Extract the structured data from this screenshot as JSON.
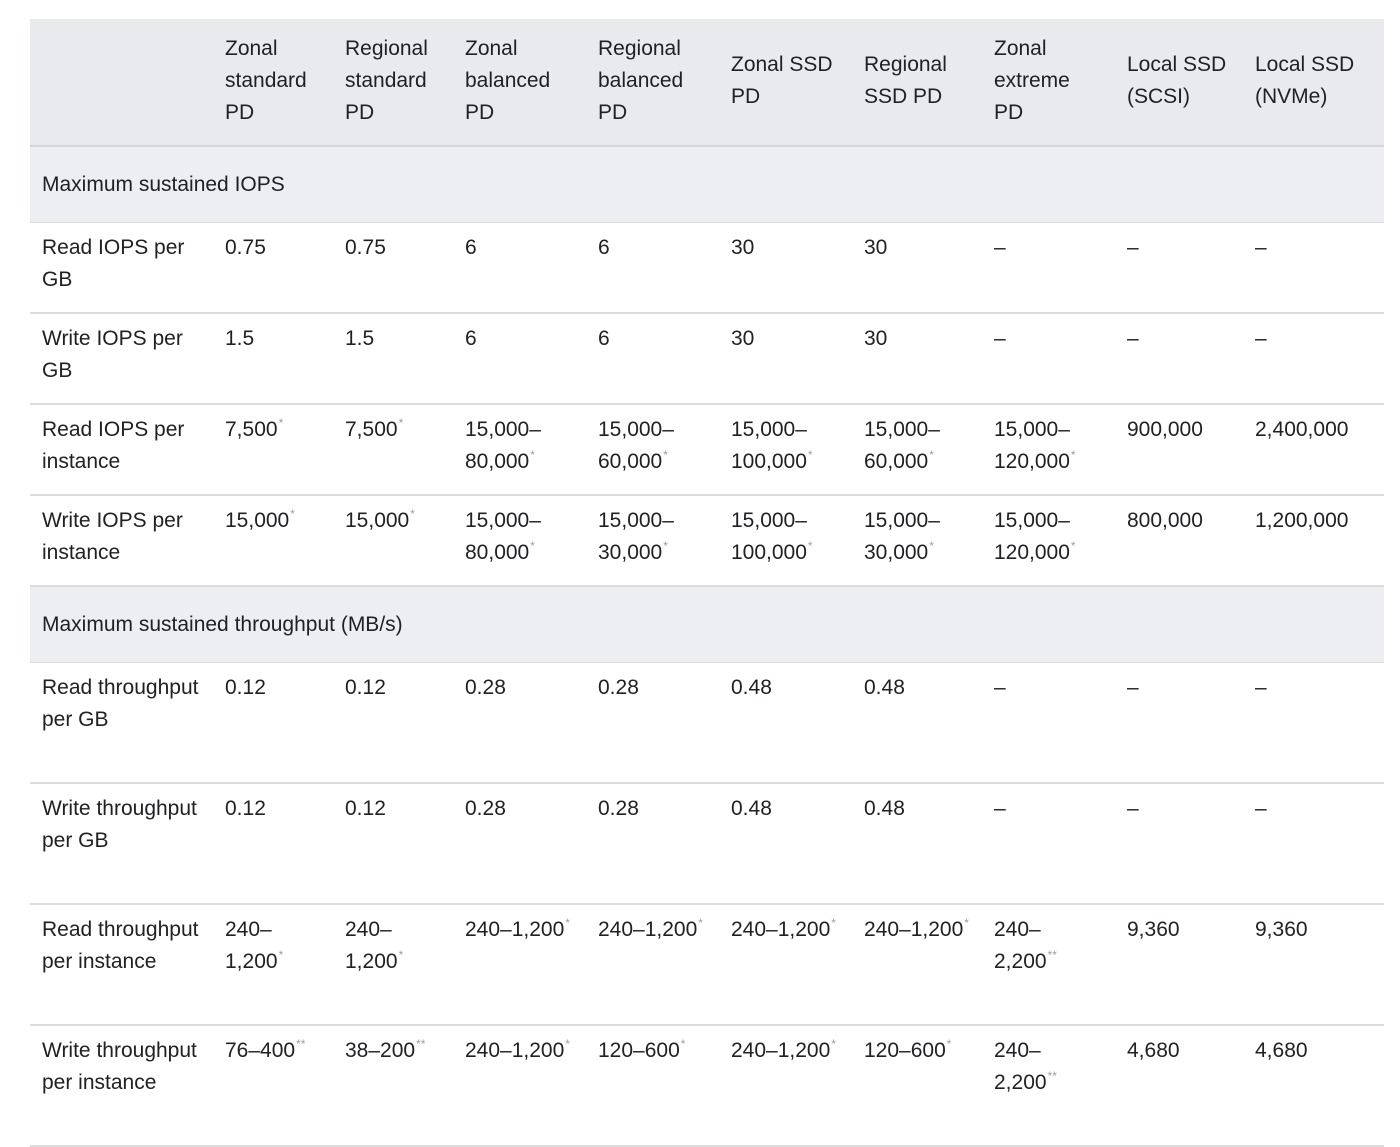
{
  "columns": [
    "",
    "Zonal standard PD",
    "Regional standard PD",
    "Zonal balanced PD",
    "Regional balanced PD",
    "Zonal SSD PD",
    "Regional SSD PD",
    "Zonal extreme PD",
    "Local SSD (SCSI)",
    "Local SSD (NVMe)"
  ],
  "sections": [
    {
      "title": "Maximum sustained IOPS",
      "rows": [
        {
          "label": "Read IOPS per GB",
          "cells": [
            {
              "v": "0.75",
              "m": ""
            },
            {
              "v": "0.75",
              "m": ""
            },
            {
              "v": "6",
              "m": ""
            },
            {
              "v": "6",
              "m": ""
            },
            {
              "v": "30",
              "m": ""
            },
            {
              "v": "30",
              "m": ""
            },
            {
              "v": "–",
              "m": ""
            },
            {
              "v": "–",
              "m": ""
            },
            {
              "v": "–",
              "m": ""
            }
          ]
        },
        {
          "label": "Write IOPS per GB",
          "cells": [
            {
              "v": "1.5",
              "m": ""
            },
            {
              "v": "1.5",
              "m": ""
            },
            {
              "v": "6",
              "m": ""
            },
            {
              "v": "6",
              "m": ""
            },
            {
              "v": "30",
              "m": ""
            },
            {
              "v": "30",
              "m": ""
            },
            {
              "v": "–",
              "m": ""
            },
            {
              "v": "–",
              "m": ""
            },
            {
              "v": "–",
              "m": ""
            }
          ]
        },
        {
          "label": "Read IOPS per instance",
          "cells": [
            {
              "v": "7,500",
              "m": "*"
            },
            {
              "v": "7,500",
              "m": "*"
            },
            {
              "v": "15,000–80,000",
              "m": "*"
            },
            {
              "v": "15,000–60,000",
              "m": "*"
            },
            {
              "v": "15,000–100,000",
              "m": "*"
            },
            {
              "v": "15,000–60,000",
              "m": "*"
            },
            {
              "v": "15,000–120,000",
              "m": "*"
            },
            {
              "v": "900,000",
              "m": ""
            },
            {
              "v": "2,400,000",
              "m": ""
            }
          ]
        },
        {
          "label": "Write IOPS per instance",
          "cells": [
            {
              "v": "15,000",
              "m": "*"
            },
            {
              "v": "15,000",
              "m": "*"
            },
            {
              "v": "15,000–80,000",
              "m": "*"
            },
            {
              "v": "15,000–30,000",
              "m": "*"
            },
            {
              "v": "15,000–100,000",
              "m": "*"
            },
            {
              "v": "15,000–30,000",
              "m": "*"
            },
            {
              "v": "15,000–120,000",
              "m": "*"
            },
            {
              "v": "800,000",
              "m": ""
            },
            {
              "v": "1,200,000",
              "m": ""
            }
          ]
        }
      ]
    },
    {
      "title": "Maximum sustained throughput (MB/s)",
      "rows": [
        {
          "label": "Read throughput per GB",
          "cells": [
            {
              "v": "0.12",
              "m": ""
            },
            {
              "v": "0.12",
              "m": ""
            },
            {
              "v": "0.28",
              "m": ""
            },
            {
              "v": "0.28",
              "m": ""
            },
            {
              "v": "0.48",
              "m": ""
            },
            {
              "v": "0.48",
              "m": ""
            },
            {
              "v": "–",
              "m": ""
            },
            {
              "v": "–",
              "m": ""
            },
            {
              "v": "–",
              "m": ""
            }
          ]
        },
        {
          "label": "Write throughput per GB",
          "cells": [
            {
              "v": "0.12",
              "m": ""
            },
            {
              "v": "0.12",
              "m": ""
            },
            {
              "v": "0.28",
              "m": ""
            },
            {
              "v": "0.28",
              "m": ""
            },
            {
              "v": "0.48",
              "m": ""
            },
            {
              "v": "0.48",
              "m": ""
            },
            {
              "v": "–",
              "m": ""
            },
            {
              "v": "–",
              "m": ""
            },
            {
              "v": "–",
              "m": ""
            }
          ]
        },
        {
          "label": "Read throughput per instance",
          "cells": [
            {
              "v": "240–1,200",
              "m": "*"
            },
            {
              "v": "240–1,200",
              "m": "*"
            },
            {
              "v": "240–1,200",
              "m": "*"
            },
            {
              "v": "240–1,200",
              "m": "*"
            },
            {
              "v": "240–1,200",
              "m": "*"
            },
            {
              "v": "240–1,200",
              "m": "*"
            },
            {
              "v": "240–2,200",
              "m": "**"
            },
            {
              "v": "9,360",
              "m": ""
            },
            {
              "v": "9,360",
              "m": ""
            }
          ]
        },
        {
          "label": "Write throughput per instance",
          "cells": [
            {
              "v": "76–400",
              "m": "**"
            },
            {
              "v": "38–200",
              "m": "**"
            },
            {
              "v": "240–1,200",
              "m": "*"
            },
            {
              "v": "120–600",
              "m": "*"
            },
            {
              "v": "240–1,200",
              "m": "*"
            },
            {
              "v": "120–600",
              "m": "*"
            },
            {
              "v": "240–2,200",
              "m": "**"
            },
            {
              "v": "4,680",
              "m": ""
            },
            {
              "v": "4,680",
              "m": ""
            }
          ]
        }
      ]
    }
  ]
}
